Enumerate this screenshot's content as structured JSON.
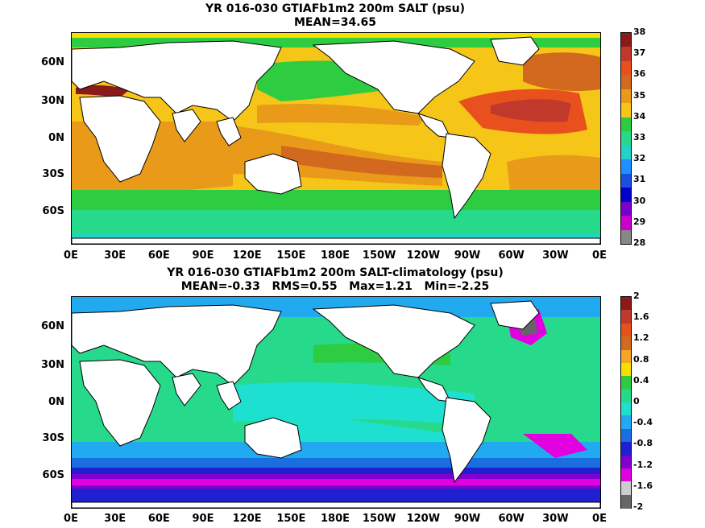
{
  "panels": [
    {
      "title_line1": "YR 016-030 GTIAFb1m2 200m SALT (psu)",
      "title_line2": "MEAN=34.65",
      "colorbar_labels": [
        "38",
        "37",
        "36",
        "35",
        "34",
        "33",
        "32",
        "31",
        "30",
        "29",
        "28"
      ],
      "colors": [
        "#8b1a1a",
        "#c0392b",
        "#e8501e",
        "#d2691e",
        "#e89a18",
        "#f5c518",
        "#2ecc40",
        "#27d98b",
        "#22d3c8",
        "#1e90ff",
        "#1a4fe0",
        "#0000cc",
        "#7700cc",
        "#cc00cc",
        "#888888"
      ],
      "regions": [
        {
          "name": "north-atlantic-high",
          "color_index": 2
        },
        {
          "name": "subtropical-pacific",
          "color_index": 5
        },
        {
          "name": "southern-ocean",
          "color_index": 6
        }
      ]
    },
    {
      "title_line1": "YR 016-030 GTIAFb1m2 200m SALT-climatology (psu)",
      "title_line2": "MEAN=-0.33   RMS=0.55   Max=1.21   Min=-2.25",
      "colorbar_labels": [
        "2",
        "1.6",
        "1.2",
        "0.8",
        "0.4",
        "0",
        "-0.4",
        "-0.8",
        "-1.2",
        "-1.6",
        "-2"
      ],
      "colors": [
        "#8b1a1a",
        "#c0392b",
        "#e8501e",
        "#d2691e",
        "#f5a623",
        "#f5e000",
        "#2ecc40",
        "#27d98b",
        "#1ee0d0",
        "#22aaf0",
        "#1a6fe0",
        "#2020d0",
        "#8000d0",
        "#e000e0",
        "#cccccc",
        "#666666"
      ]
    }
  ],
  "axes": {
    "lat_labels": [
      "60N",
      "30N",
      "0N",
      "30S",
      "60S"
    ],
    "lon_labels": [
      "0E",
      "30E",
      "60E",
      "90E",
      "120E",
      "150E",
      "180E",
      "150W",
      "120W",
      "90W",
      "60W",
      "30W",
      "0E"
    ]
  }
}
